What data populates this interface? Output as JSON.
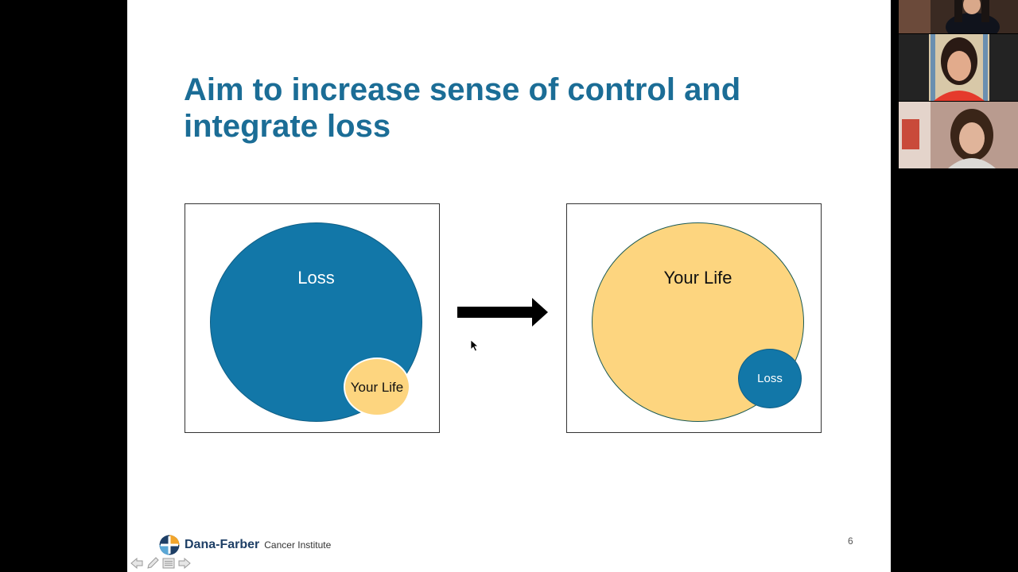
{
  "slide": {
    "title": "Aim to increase sense of control and integrate loss",
    "left_diagram": {
      "outer_label": "Loss",
      "inner_label": "Your Life"
    },
    "right_diagram": {
      "outer_label": "Your Life",
      "inner_label": "Loss"
    },
    "logo": {
      "name": "Dana-Farber",
      "subtitle": "Cancer Institute"
    },
    "page_number": "6"
  },
  "colors": {
    "title": "#1b6d96",
    "blue": "#1277a8",
    "yellow": "#fdd57f"
  },
  "nav_icons": [
    "arrow-left-icon",
    "pen-icon",
    "menu-icon",
    "arrow-right-icon"
  ],
  "video_tiles": [
    "participant-1",
    "participant-2",
    "participant-3"
  ]
}
